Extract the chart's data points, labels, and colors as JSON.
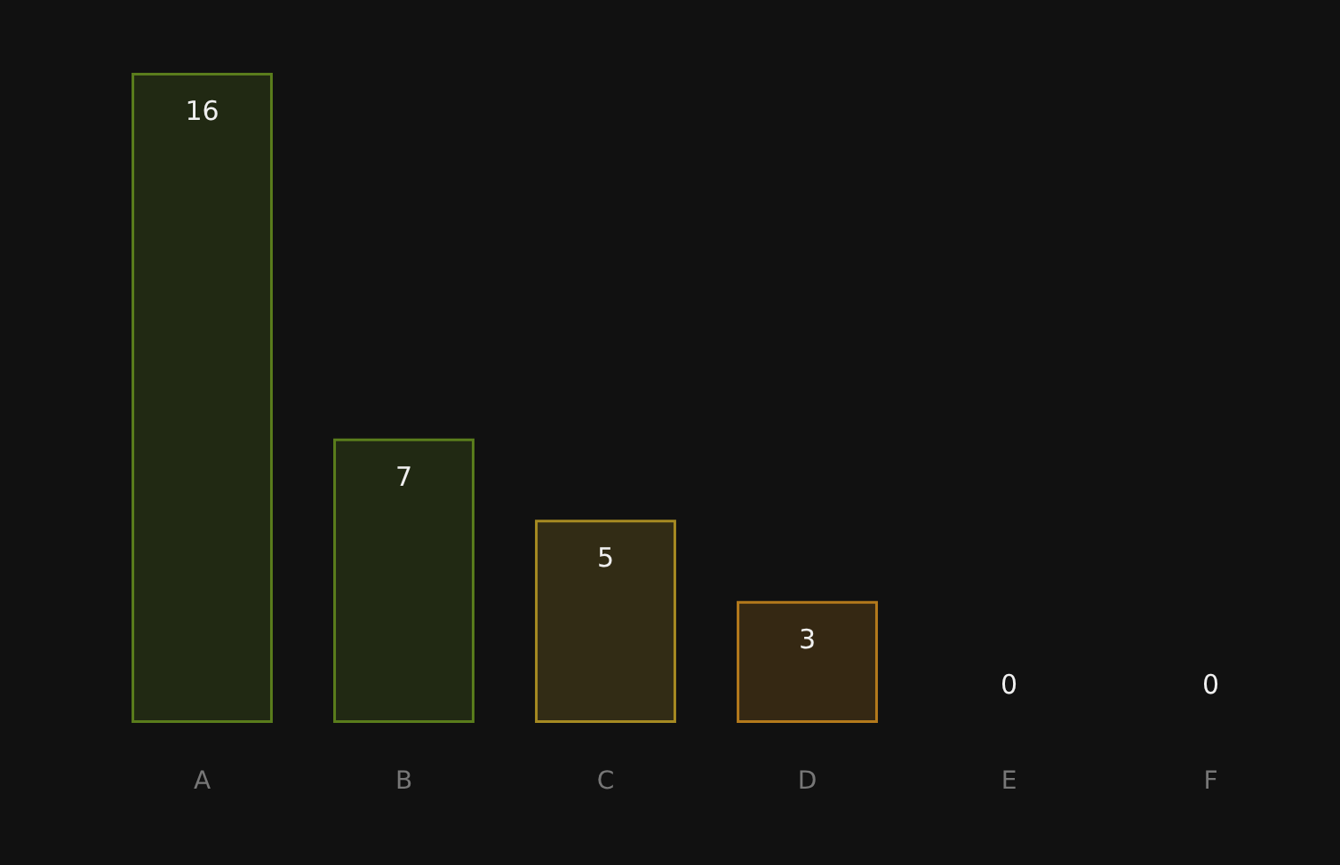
{
  "chart_data": {
    "type": "bar",
    "categories": [
      "A",
      "B",
      "C",
      "D",
      "E",
      "F"
    ],
    "values": [
      16,
      7,
      5,
      3,
      0,
      0
    ],
    "colors": [
      "#5a7d1c",
      "#5a7d1c",
      "#a68a22",
      "#b47a1c",
      "#b8661c",
      "#b8661c"
    ],
    "data_labels": true
  }
}
